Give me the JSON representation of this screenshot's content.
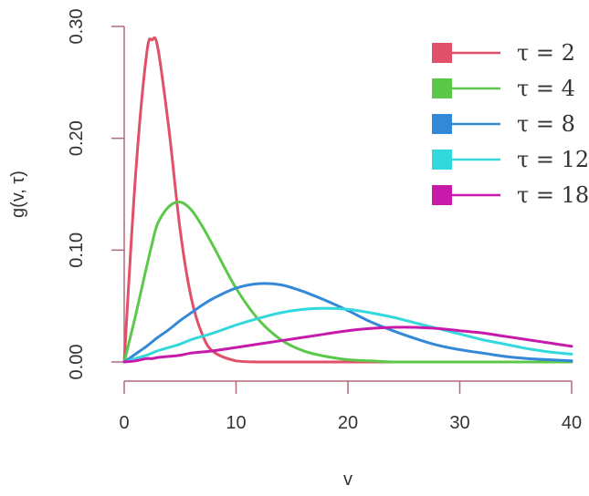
{
  "chart_data": {
    "type": "line",
    "title": "",
    "xlabel": "v",
    "ylabel": "g(v, τ)",
    "xlim": [
      0,
      40
    ],
    "ylim": [
      0,
      0.3
    ],
    "x_ticks": [
      0,
      10,
      20,
      30,
      40
    ],
    "x_tick_labels": [
      "0",
      "10",
      "20",
      "30",
      "40"
    ],
    "y_ticks": [
      0,
      0.1,
      0.2,
      0.3
    ],
    "y_tick_labels": [
      "0.00",
      "0.10",
      "0.20",
      "0.30"
    ],
    "grid": false,
    "legend_position": "top-right",
    "x": [
      0,
      1,
      2,
      2.5,
      3,
      4,
      5,
      6,
      7,
      8,
      10,
      12,
      14,
      16,
      18,
      20,
      22,
      24,
      26,
      28,
      30,
      32,
      34,
      36,
      38,
      40
    ],
    "series": [
      {
        "name": "τ = 2",
        "color": "#e05068",
        "values": [
          0,
          0.165,
          0.275,
          0.288,
          0.281,
          0.208,
          0.118,
          0.057,
          0.024,
          0.009,
          0.001,
          0,
          0,
          0,
          0,
          0,
          0,
          0,
          0,
          0,
          0,
          0,
          0,
          0,
          0,
          0
        ]
      },
      {
        "name": "τ = 4",
        "color": "#5cc84a",
        "values": [
          0,
          0.041,
          0.085,
          0.106,
          0.124,
          0.139,
          0.143,
          0.136,
          0.121,
          0.103,
          0.066,
          0.038,
          0.02,
          0.01,
          0.005,
          0.002,
          0.001,
          0,
          0,
          0,
          0,
          0,
          0,
          0,
          0,
          0
        ]
      },
      {
        "name": "τ = 8",
        "color": "#3388d8",
        "values": [
          0,
          0.007,
          0.014,
          0.018,
          0.022,
          0.029,
          0.037,
          0.044,
          0.051,
          0.057,
          0.066,
          0.07,
          0.069,
          0.063,
          0.055,
          0.046,
          0.036,
          0.028,
          0.021,
          0.015,
          0.011,
          0.008,
          0.005,
          0.003,
          0.002,
          0.001
        ]
      },
      {
        "name": "τ = 12",
        "color": "#33d8dc",
        "values": [
          0,
          0.003,
          0.006,
          0.008,
          0.01,
          0.013,
          0.016,
          0.02,
          0.023,
          0.026,
          0.033,
          0.039,
          0.044,
          0.047,
          0.048,
          0.047,
          0.044,
          0.04,
          0.035,
          0.03,
          0.025,
          0.02,
          0.016,
          0.012,
          0.009,
          0.007
        ]
      },
      {
        "name": "τ = 18",
        "color": "#c81aaa",
        "values": [
          0,
          0.001,
          0.003,
          0.003,
          0.004,
          0.005,
          0.006,
          0.008,
          0.009,
          0.01,
          0.013,
          0.016,
          0.019,
          0.022,
          0.025,
          0.028,
          0.03,
          0.031,
          0.031,
          0.03,
          0.028,
          0.026,
          0.023,
          0.02,
          0.017,
          0.014
        ]
      }
    ]
  }
}
